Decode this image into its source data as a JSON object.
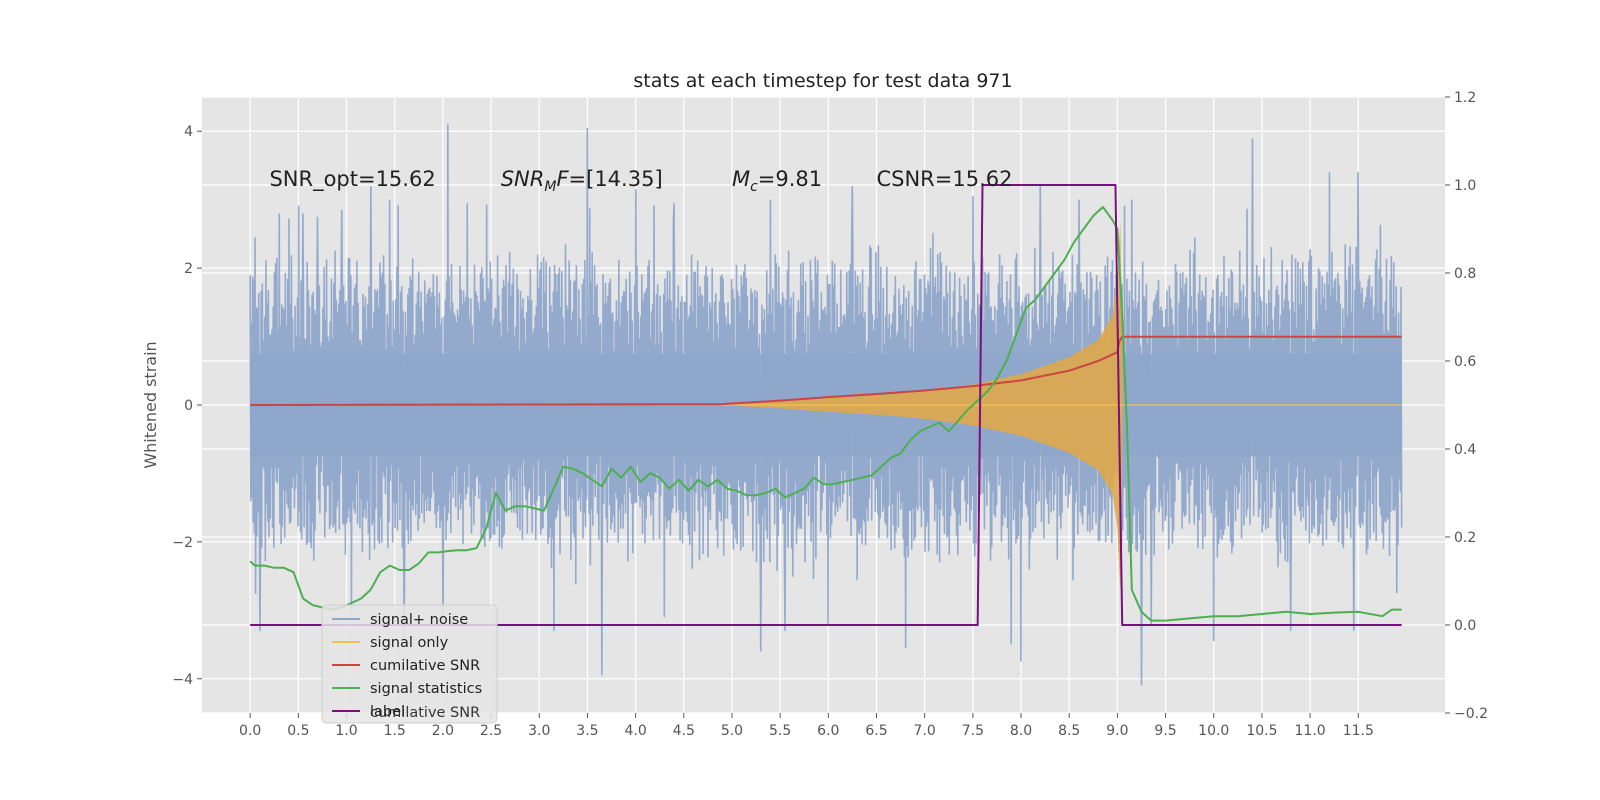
{
  "chart_data": {
    "type": "line",
    "title": "stats at each timestep for test data 971",
    "ylabel": "Whitened strain",
    "y2label": "",
    "grid": true,
    "xlim": [
      -0.5,
      12.4
    ],
    "ylim": [
      -4.5,
      4.5
    ],
    "y2lim": [
      -0.2,
      1.2
    ],
    "xticks": [
      0.0,
      0.5,
      1.0,
      1.5,
      2.0,
      2.5,
      3.0,
      3.5,
      4.0,
      4.5,
      5.0,
      5.5,
      6.0,
      6.5,
      7.0,
      7.5,
      8.0,
      8.5,
      9.0,
      9.5,
      10.0,
      10.5,
      11.0,
      11.5
    ],
    "xtick_labels": [
      "0.0",
      "0.5",
      "1.0",
      "1.5",
      "2.0",
      "2.5",
      "3.0",
      "3.5",
      "4.0",
      "4.5",
      "5.0",
      "5.5",
      "6.0",
      "6.5",
      "7.0",
      "7.5",
      "8.0",
      "8.5",
      "9.0",
      "9.5",
      "10.0",
      "10.5",
      "11.0",
      "11.5"
    ],
    "yticks": [
      -4,
      -2,
      0,
      2,
      4
    ],
    "ytick_labels": [
      "−4",
      "−2",
      "0",
      "2",
      "4"
    ],
    "y2ticks": [
      -0.2,
      0.0,
      0.2,
      0.4,
      0.6,
      0.8,
      1.0,
      1.2
    ],
    "y2tick_labels": [
      "−0.2",
      "0.0",
      "0.2",
      "0.4",
      "0.6",
      "0.8",
      "1.0",
      "1.2"
    ],
    "annotations": [
      {
        "text": "SNR_opt=15.62",
        "x": 0.2
      },
      {
        "text": "SNR",
        "sub": "M",
        "rest": "F=[14.35]",
        "x": 2.6,
        "italic_main": true
      },
      {
        "text": "M",
        "sub": "c",
        "rest": "=9.81",
        "x": 5.0,
        "italic_main": true
      },
      {
        "text": "CSNR=15.62",
        "x": 6.5
      }
    ],
    "annotation_y": 3.3,
    "legend": {
      "placement": "lower-left",
      "entries": [
        {
          "label": "signal+ noise",
          "color": "#8fa6cb"
        },
        {
          "label": "signal only",
          "color": "#f2c14e"
        },
        {
          "label": "cumilative SNR",
          "color": "#cc4444"
        },
        {
          "label": "signal statistics",
          "color": "#4caf50"
        },
        {
          "label": "label",
          "color": "#7b0f7e"
        }
      ],
      "ghost_text": "cumilative SNR"
    },
    "series": [
      {
        "name": "signal+ noise",
        "axis": "left",
        "color": "#8fa6cb",
        "x_range": [
          0.0,
          11.95
        ],
        "typical_peak": 1.9,
        "peaks": [
          [
            0.05,
            2.45
          ],
          [
            0.3,
            2.8
          ],
          [
            0.55,
            2.8
          ],
          [
            0.7,
            2.75
          ],
          [
            0.95,
            2.85
          ],
          [
            1.25,
            3.2
          ],
          [
            1.45,
            3.0
          ],
          [
            2.05,
            4.1
          ],
          [
            2.25,
            2.95
          ],
          [
            3.15,
            3.25
          ],
          [
            3.5,
            4.05
          ],
          [
            4.0,
            3.15
          ],
          [
            4.4,
            2.95
          ],
          [
            5.4,
            3.0
          ],
          [
            6.25,
            3.2
          ],
          [
            7.5,
            3.05
          ],
          [
            8.2,
            3.2
          ],
          [
            8.6,
            3.0
          ],
          [
            9.15,
            3.0
          ],
          [
            10.4,
            3.9
          ],
          [
            10.8,
            3.35
          ],
          [
            11.2,
            3.4
          ],
          [
            11.5,
            3.4
          ]
        ],
        "troughs": [
          [
            0.1,
            -3.3
          ],
          [
            1.05,
            -3.0
          ],
          [
            1.6,
            -3.4
          ],
          [
            2.0,
            -3.2
          ],
          [
            3.15,
            -3.3
          ],
          [
            3.65,
            -3.95
          ],
          [
            4.3,
            -3.1
          ],
          [
            5.3,
            -3.6
          ],
          [
            5.55,
            -3.3
          ],
          [
            6.0,
            -3.2
          ],
          [
            6.8,
            -3.55
          ],
          [
            7.9,
            -3.5
          ],
          [
            8.0,
            -3.75
          ],
          [
            9.25,
            -4.1
          ],
          [
            9.35,
            -3.2
          ],
          [
            10.0,
            -3.45
          ],
          [
            10.8,
            -3.3
          ],
          [
            11.45,
            -3.3
          ]
        ]
      },
      {
        "name": "signal only",
        "axis": "left",
        "color": "#dea84a",
        "envelope": [
          [
            4.9,
            0.0
          ],
          [
            5.5,
            0.05
          ],
          [
            6.0,
            0.1
          ],
          [
            6.5,
            0.14
          ],
          [
            7.0,
            0.2
          ],
          [
            7.5,
            0.3
          ],
          [
            8.0,
            0.45
          ],
          [
            8.5,
            0.7
          ],
          [
            8.8,
            0.95
          ],
          [
            8.95,
            1.3
          ],
          [
            9.0,
            1.8
          ],
          [
            9.03,
            2.7
          ],
          [
            9.06,
            0.0
          ],
          [
            11.95,
            0.0
          ]
        ]
      },
      {
        "name": "cumilative SNR",
        "axis": "right",
        "color": "#cc4444",
        "x": [
          0.0,
          4.9,
          5.5,
          6.0,
          6.5,
          7.0,
          7.5,
          8.0,
          8.5,
          8.8,
          9.0,
          9.02,
          9.05,
          11.95
        ],
        "y": [
          0.5,
          0.502,
          0.51,
          0.518,
          0.525,
          0.533,
          0.543,
          0.556,
          0.578,
          0.6,
          0.62,
          0.645,
          0.655,
          0.655
        ]
      },
      {
        "name": "signal statistics",
        "axis": "right",
        "color": "#4caf50",
        "x": [
          0.0,
          0.05,
          0.15,
          0.25,
          0.35,
          0.45,
          0.55,
          0.65,
          0.75,
          0.85,
          0.95,
          1.05,
          1.15,
          1.25,
          1.35,
          1.45,
          1.55,
          1.65,
          1.75,
          1.85,
          1.95,
          2.05,
          2.15,
          2.25,
          2.35,
          2.45,
          2.55,
          2.65,
          2.75,
          2.85,
          2.95,
          3.05,
          3.15,
          3.25,
          3.35,
          3.45,
          3.55,
          3.65,
          3.75,
          3.85,
          3.95,
          4.05,
          4.15,
          4.25,
          4.35,
          4.45,
          4.55,
          4.65,
          4.75,
          4.85,
          4.95,
          5.05,
          5.15,
          5.25,
          5.35,
          5.45,
          5.55,
          5.65,
          5.75,
          5.85,
          5.95,
          6.05,
          6.15,
          6.25,
          6.35,
          6.45,
          6.55,
          6.65,
          6.75,
          6.85,
          6.95,
          7.05,
          7.15,
          7.25,
          7.35,
          7.45,
          7.55,
          7.65,
          7.75,
          7.85,
          7.95,
          8.05,
          8.15,
          8.25,
          8.35,
          8.45,
          8.55,
          8.65,
          8.75,
          8.85,
          8.95,
          9.0,
          9.05,
          9.1,
          9.15,
          9.25,
          9.35,
          9.5,
          9.75,
          10.0,
          10.25,
          10.5,
          10.75,
          11.0,
          11.25,
          11.5,
          11.75,
          11.85,
          11.95
        ],
        "y": [
          0.145,
          0.135,
          0.135,
          0.13,
          0.13,
          0.12,
          0.06,
          0.045,
          0.04,
          0.035,
          0.04,
          0.05,
          0.06,
          0.08,
          0.12,
          0.135,
          0.125,
          0.125,
          0.14,
          0.165,
          0.165,
          0.168,
          0.17,
          0.17,
          0.175,
          0.22,
          0.3,
          0.26,
          0.27,
          0.27,
          0.265,
          0.26,
          0.31,
          0.36,
          0.355,
          0.345,
          0.33,
          0.315,
          0.355,
          0.335,
          0.36,
          0.325,
          0.345,
          0.335,
          0.31,
          0.33,
          0.305,
          0.33,
          0.315,
          0.33,
          0.31,
          0.305,
          0.295,
          0.295,
          0.3,
          0.31,
          0.29,
          0.3,
          0.31,
          0.335,
          0.32,
          0.32,
          0.325,
          0.33,
          0.335,
          0.34,
          0.36,
          0.38,
          0.39,
          0.42,
          0.44,
          0.45,
          0.46,
          0.44,
          0.465,
          0.49,
          0.51,
          0.53,
          0.56,
          0.6,
          0.66,
          0.72,
          0.74,
          0.77,
          0.8,
          0.83,
          0.87,
          0.9,
          0.93,
          0.95,
          0.92,
          0.9,
          0.7,
          0.45,
          0.08,
          0.03,
          0.01,
          0.01,
          0.015,
          0.02,
          0.02,
          0.025,
          0.03,
          0.025,
          0.028,
          0.03,
          0.02,
          0.035,
          0.035
        ]
      },
      {
        "name": "label",
        "axis": "right",
        "color": "#7b0f7e",
        "x": [
          0.0,
          7.55,
          7.6,
          8.98,
          9.05,
          11.95
        ],
        "y": [
          0.0,
          0.0,
          1.0,
          1.0,
          0.0,
          0.0
        ]
      }
    ]
  }
}
